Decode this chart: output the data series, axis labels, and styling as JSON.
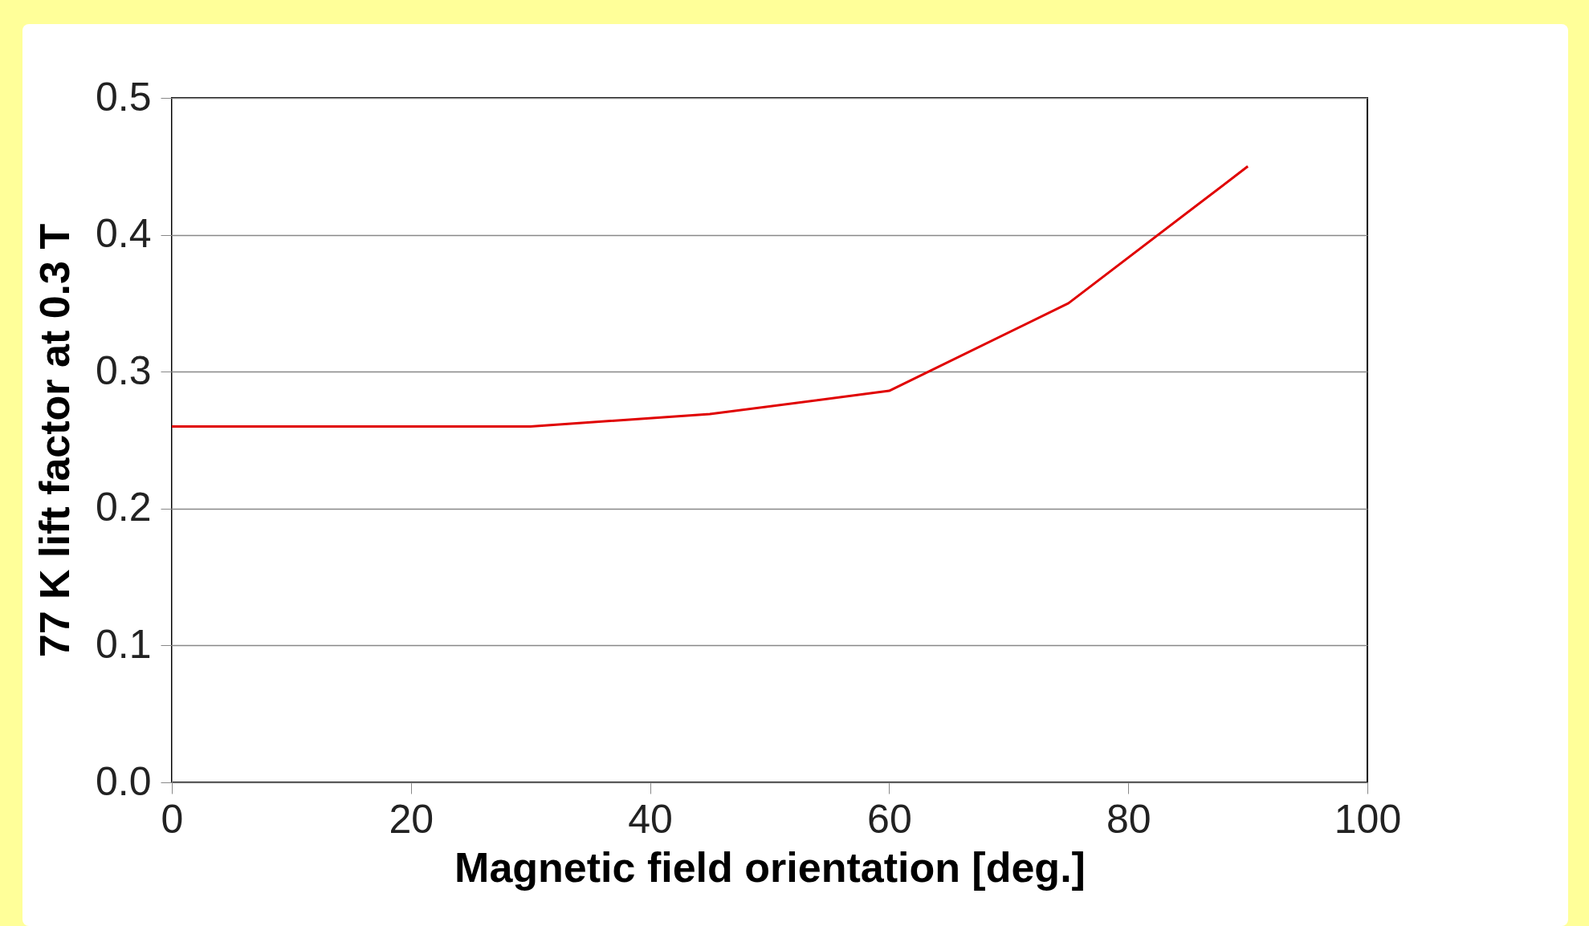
{
  "chart_data": {
    "type": "line",
    "xlabel": "Magnetic field orientation  [deg.]",
    "ylabel": "77 K lift factor at 0.3 T",
    "x": [
      0,
      15,
      30,
      45,
      60,
      75,
      90
    ],
    "series": [
      {
        "color": "#e00000",
        "values": [
          0.26,
          0.26,
          0.26,
          0.269,
          0.286,
          0.35,
          0.45
        ]
      }
    ],
    "xlim": [
      0,
      100
    ],
    "xticks": [
      0,
      20,
      40,
      60,
      80,
      100
    ],
    "ylim": [
      0,
      0.5
    ],
    "yticks": [
      {
        "value": 0,
        "label": "0.0"
      },
      0.1,
      0.2,
      0.3,
      0.4,
      0.5
    ],
    "grid": "y",
    "marker": "none",
    "line_style": "solid"
  }
}
